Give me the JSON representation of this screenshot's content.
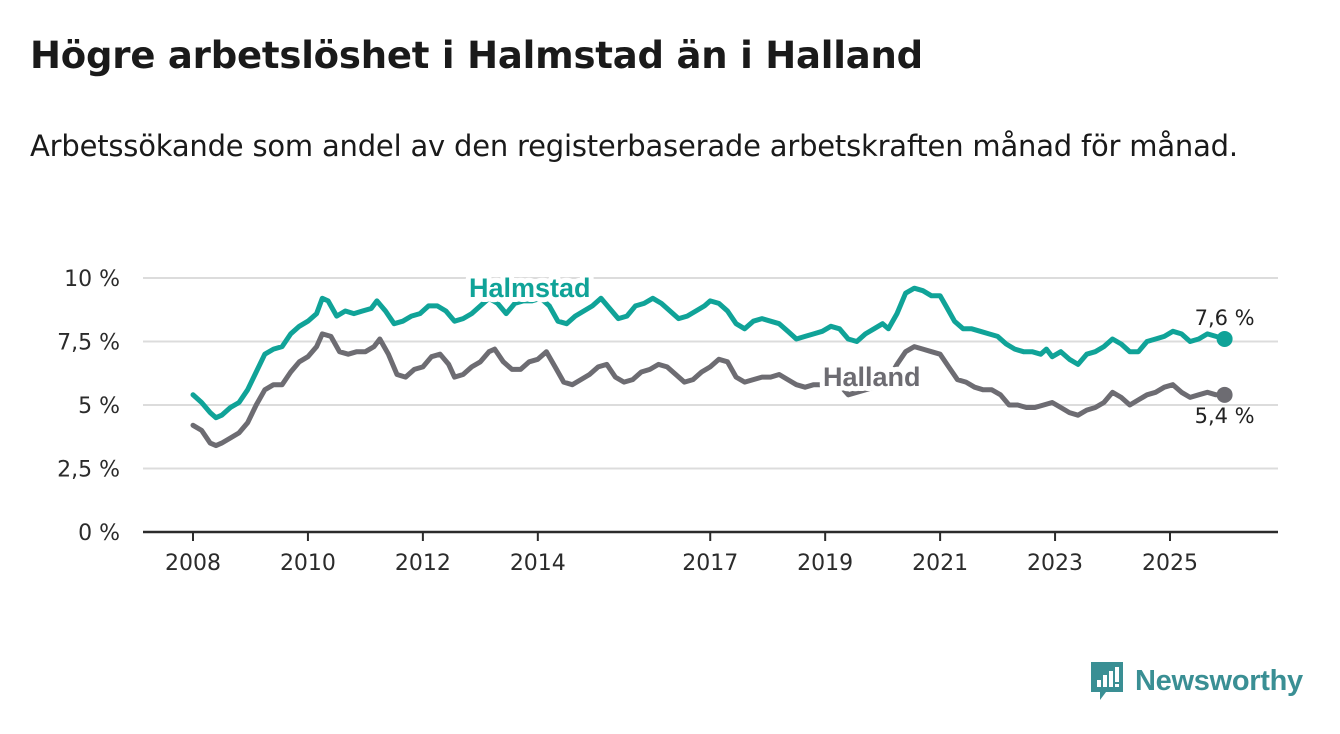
{
  "header": {
    "title": "Högre arbetslöshet i Halmstad än i Halland",
    "subtitle": "Arbetssökande som andel av den registerbaserade arbetskraften månad för månad."
  },
  "brand": {
    "name": "Newsworthy"
  },
  "colors": {
    "halmstad": "#10a398",
    "halland": "#6d6c72",
    "grid": "#dcdcdc",
    "axis": "#2b2b2b",
    "brand": "#3a8f94"
  },
  "chart_data": {
    "type": "line",
    "title": "Högre arbetslöshet i Halmstad än i Halland",
    "xlabel": "",
    "ylabel": "",
    "ylim": [
      0,
      10
    ],
    "xlim": [
      2007.6,
      2026.5
    ],
    "y_ticks": [
      {
        "value": 0,
        "label": "0 %"
      },
      {
        "value": 2.5,
        "label": "2,5 %"
      },
      {
        "value": 5,
        "label": "5 %"
      },
      {
        "value": 7.5,
        "label": "7,5 %"
      },
      {
        "value": 10,
        "label": "10 %"
      }
    ],
    "x_ticks": [
      {
        "value": 2008,
        "label": "2008"
      },
      {
        "value": 2010,
        "label": "2010"
      },
      {
        "value": 2012,
        "label": "2012"
      },
      {
        "value": 2014,
        "label": "2014"
      },
      {
        "value": 2017,
        "label": "2017"
      },
      {
        "value": 2019,
        "label": "2019"
      },
      {
        "value": 2021,
        "label": "2021"
      },
      {
        "value": 2023,
        "label": "2023"
      },
      {
        "value": 2025,
        "label": "2025"
      }
    ],
    "grid": true,
    "series": [
      {
        "name": "Halmstad",
        "color": "#10a398",
        "end_label": "7,6 %",
        "points": [
          [
            2008.0,
            5.4
          ],
          [
            2008.15,
            5.1
          ],
          [
            2008.3,
            4.7
          ],
          [
            2008.4,
            4.5
          ],
          [
            2008.5,
            4.6
          ],
          [
            2008.65,
            4.9
          ],
          [
            2008.8,
            5.1
          ],
          [
            2008.95,
            5.6
          ],
          [
            2009.1,
            6.3
          ],
          [
            2009.25,
            7.0
          ],
          [
            2009.4,
            7.2
          ],
          [
            2009.55,
            7.3
          ],
          [
            2009.7,
            7.8
          ],
          [
            2009.85,
            8.1
          ],
          [
            2010.0,
            8.3
          ],
          [
            2010.15,
            8.6
          ],
          [
            2010.25,
            9.2
          ],
          [
            2010.35,
            9.1
          ],
          [
            2010.5,
            8.5
          ],
          [
            2010.65,
            8.7
          ],
          [
            2010.8,
            8.6
          ],
          [
            2010.95,
            8.7
          ],
          [
            2011.1,
            8.8
          ],
          [
            2011.2,
            9.1
          ],
          [
            2011.35,
            8.7
          ],
          [
            2011.5,
            8.2
          ],
          [
            2011.65,
            8.3
          ],
          [
            2011.8,
            8.5
          ],
          [
            2011.95,
            8.6
          ],
          [
            2012.1,
            8.9
          ],
          [
            2012.25,
            8.9
          ],
          [
            2012.4,
            8.7
          ],
          [
            2012.55,
            8.3
          ],
          [
            2012.7,
            8.4
          ],
          [
            2012.85,
            8.6
          ],
          [
            2013.0,
            8.9
          ],
          [
            2013.15,
            9.2
          ],
          [
            2013.3,
            9.0
          ],
          [
            2013.45,
            8.6
          ],
          [
            2013.6,
            9.0
          ],
          [
            2013.75,
            9.1
          ],
          [
            2013.9,
            9.1
          ],
          [
            2014.05,
            9.2
          ],
          [
            2014.2,
            8.9
          ],
          [
            2014.35,
            8.3
          ],
          [
            2014.5,
            8.2
          ],
          [
            2014.65,
            8.5
          ],
          [
            2014.8,
            8.7
          ],
          [
            2014.95,
            8.9
          ],
          [
            2015.1,
            9.2
          ],
          [
            2015.25,
            8.8
          ],
          [
            2015.4,
            8.4
          ],
          [
            2015.55,
            8.5
          ],
          [
            2015.7,
            8.9
          ],
          [
            2015.85,
            9.0
          ],
          [
            2016.0,
            9.2
          ],
          [
            2016.15,
            9.0
          ],
          [
            2016.3,
            8.7
          ],
          [
            2016.45,
            8.4
          ],
          [
            2016.6,
            8.5
          ],
          [
            2016.75,
            8.7
          ],
          [
            2016.9,
            8.9
          ],
          [
            2017.0,
            9.1
          ],
          [
            2017.15,
            9.0
          ],
          [
            2017.3,
            8.7
          ],
          [
            2017.45,
            8.2
          ],
          [
            2017.6,
            8.0
          ],
          [
            2017.75,
            8.3
          ],
          [
            2017.9,
            8.4
          ],
          [
            2018.05,
            8.3
          ],
          [
            2018.2,
            8.2
          ],
          [
            2018.35,
            7.9
          ],
          [
            2018.5,
            7.6
          ],
          [
            2018.65,
            7.7
          ],
          [
            2018.8,
            7.8
          ],
          [
            2018.95,
            7.9
          ],
          [
            2019.1,
            8.1
          ],
          [
            2019.25,
            8.0
          ],
          [
            2019.4,
            7.6
          ],
          [
            2019.55,
            7.5
          ],
          [
            2019.7,
            7.8
          ],
          [
            2019.85,
            8.0
          ],
          [
            2020.0,
            8.2
          ],
          [
            2020.1,
            8.0
          ],
          [
            2020.25,
            8.6
          ],
          [
            2020.4,
            9.4
          ],
          [
            2020.55,
            9.6
          ],
          [
            2020.7,
            9.5
          ],
          [
            2020.85,
            9.3
          ],
          [
            2021.0,
            9.3
          ],
          [
            2021.1,
            8.9
          ],
          [
            2021.25,
            8.3
          ],
          [
            2021.4,
            8.0
          ],
          [
            2021.55,
            8.0
          ],
          [
            2021.7,
            7.9
          ],
          [
            2021.85,
            7.8
          ],
          [
            2022.0,
            7.7
          ],
          [
            2022.15,
            7.4
          ],
          [
            2022.3,
            7.2
          ],
          [
            2022.45,
            7.1
          ],
          [
            2022.6,
            7.1
          ],
          [
            2022.75,
            7.0
          ],
          [
            2022.85,
            7.2
          ],
          [
            2022.95,
            6.9
          ],
          [
            2023.1,
            7.1
          ],
          [
            2023.25,
            6.8
          ],
          [
            2023.4,
            6.6
          ],
          [
            2023.55,
            7.0
          ],
          [
            2023.7,
            7.1
          ],
          [
            2023.85,
            7.3
          ],
          [
            2024.0,
            7.6
          ],
          [
            2024.15,
            7.4
          ],
          [
            2024.3,
            7.1
          ],
          [
            2024.45,
            7.1
          ],
          [
            2024.6,
            7.5
          ],
          [
            2024.75,
            7.6
          ],
          [
            2024.9,
            7.7
          ],
          [
            2025.05,
            7.9
          ],
          [
            2025.2,
            7.8
          ],
          [
            2025.35,
            7.5
          ],
          [
            2025.5,
            7.6
          ],
          [
            2025.65,
            7.8
          ],
          [
            2025.8,
            7.7
          ],
          [
            2025.95,
            7.6
          ]
        ]
      },
      {
        "name": "Halland",
        "color": "#6d6c72",
        "end_label": "5,4 %",
        "points": [
          [
            2008.0,
            4.2
          ],
          [
            2008.15,
            4.0
          ],
          [
            2008.3,
            3.5
          ],
          [
            2008.4,
            3.4
          ],
          [
            2008.5,
            3.5
          ],
          [
            2008.65,
            3.7
          ],
          [
            2008.8,
            3.9
          ],
          [
            2008.95,
            4.3
          ],
          [
            2009.1,
            5.0
          ],
          [
            2009.25,
            5.6
          ],
          [
            2009.4,
            5.8
          ],
          [
            2009.55,
            5.8
          ],
          [
            2009.7,
            6.3
          ],
          [
            2009.85,
            6.7
          ],
          [
            2010.0,
            6.9
          ],
          [
            2010.15,
            7.3
          ],
          [
            2010.25,
            7.8
          ],
          [
            2010.4,
            7.7
          ],
          [
            2010.55,
            7.1
          ],
          [
            2010.7,
            7.0
          ],
          [
            2010.85,
            7.1
          ],
          [
            2011.0,
            7.1
          ],
          [
            2011.15,
            7.3
          ],
          [
            2011.25,
            7.6
          ],
          [
            2011.4,
            7.0
          ],
          [
            2011.55,
            6.2
          ],
          [
            2011.7,
            6.1
          ],
          [
            2011.85,
            6.4
          ],
          [
            2012.0,
            6.5
          ],
          [
            2012.15,
            6.9
          ],
          [
            2012.3,
            7.0
          ],
          [
            2012.45,
            6.6
          ],
          [
            2012.55,
            6.1
          ],
          [
            2012.7,
            6.2
          ],
          [
            2012.85,
            6.5
          ],
          [
            2013.0,
            6.7
          ],
          [
            2013.15,
            7.1
          ],
          [
            2013.25,
            7.2
          ],
          [
            2013.4,
            6.7
          ],
          [
            2013.55,
            6.4
          ],
          [
            2013.7,
            6.4
          ],
          [
            2013.85,
            6.7
          ],
          [
            2014.0,
            6.8
          ],
          [
            2014.15,
            7.1
          ],
          [
            2014.3,
            6.5
          ],
          [
            2014.45,
            5.9
          ],
          [
            2014.6,
            5.8
          ],
          [
            2014.75,
            6.0
          ],
          [
            2014.9,
            6.2
          ],
          [
            2015.05,
            6.5
          ],
          [
            2015.2,
            6.6
          ],
          [
            2015.35,
            6.1
          ],
          [
            2015.5,
            5.9
          ],
          [
            2015.65,
            6.0
          ],
          [
            2015.8,
            6.3
          ],
          [
            2015.95,
            6.4
          ],
          [
            2016.1,
            6.6
          ],
          [
            2016.25,
            6.5
          ],
          [
            2016.4,
            6.2
          ],
          [
            2016.55,
            5.9
          ],
          [
            2016.7,
            6.0
          ],
          [
            2016.85,
            6.3
          ],
          [
            2017.0,
            6.5
          ],
          [
            2017.15,
            6.8
          ],
          [
            2017.3,
            6.7
          ],
          [
            2017.45,
            6.1
          ],
          [
            2017.6,
            5.9
          ],
          [
            2017.75,
            6.0
          ],
          [
            2017.9,
            6.1
          ],
          [
            2018.05,
            6.1
          ],
          [
            2018.2,
            6.2
          ],
          [
            2018.35,
            6.0
          ],
          [
            2018.5,
            5.8
          ],
          [
            2018.65,
            5.7
          ],
          [
            2018.8,
            5.8
          ],
          [
            2018.95,
            5.8
          ],
          [
            2019.1,
            5.9
          ],
          [
            2019.25,
            5.8
          ],
          [
            2019.4,
            5.4
          ],
          [
            2019.55,
            5.5
          ],
          [
            2019.7,
            5.6
          ],
          [
            2019.85,
            5.7
          ],
          [
            2020.0,
            6.0
          ],
          [
            2020.1,
            6.0
          ],
          [
            2020.25,
            6.6
          ],
          [
            2020.4,
            7.1
          ],
          [
            2020.55,
            7.3
          ],
          [
            2020.7,
            7.2
          ],
          [
            2020.85,
            7.1
          ],
          [
            2021.0,
            7.0
          ],
          [
            2021.15,
            6.5
          ],
          [
            2021.3,
            6.0
          ],
          [
            2021.45,
            5.9
          ],
          [
            2021.6,
            5.7
          ],
          [
            2021.75,
            5.6
          ],
          [
            2021.9,
            5.6
          ],
          [
            2022.05,
            5.4
          ],
          [
            2022.2,
            5.0
          ],
          [
            2022.35,
            5.0
          ],
          [
            2022.5,
            4.9
          ],
          [
            2022.65,
            4.9
          ],
          [
            2022.8,
            5.0
          ],
          [
            2022.95,
            5.1
          ],
          [
            2023.1,
            4.9
          ],
          [
            2023.25,
            4.7
          ],
          [
            2023.4,
            4.6
          ],
          [
            2023.55,
            4.8
          ],
          [
            2023.7,
            4.9
          ],
          [
            2023.85,
            5.1
          ],
          [
            2024.0,
            5.5
          ],
          [
            2024.15,
            5.3
          ],
          [
            2024.3,
            5.0
          ],
          [
            2024.45,
            5.2
          ],
          [
            2024.6,
            5.4
          ],
          [
            2024.75,
            5.5
          ],
          [
            2024.9,
            5.7
          ],
          [
            2025.05,
            5.8
          ],
          [
            2025.2,
            5.5
          ],
          [
            2025.35,
            5.3
          ],
          [
            2025.5,
            5.4
          ],
          [
            2025.65,
            5.5
          ],
          [
            2025.8,
            5.4
          ],
          [
            2025.95,
            5.4
          ]
        ]
      }
    ]
  }
}
